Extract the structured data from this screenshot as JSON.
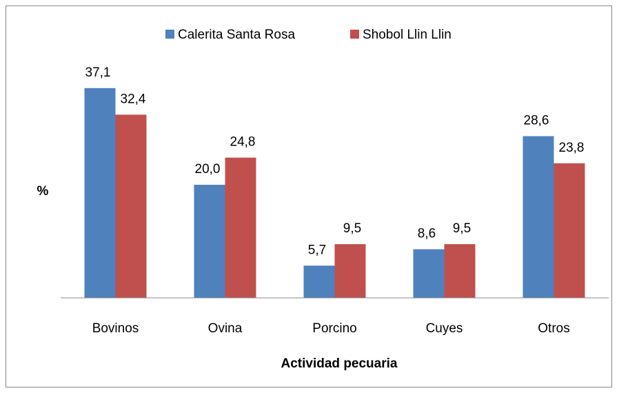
{
  "chart_data": {
    "type": "bar",
    "categories": [
      "Bovinos",
      "Ovina",
      "Porcino",
      "Cuyes",
      "Otros"
    ],
    "series": [
      {
        "name": "Calerita Santa Rosa",
        "color": "#4f81bd",
        "values": [
          37.1,
          20.0,
          5.7,
          8.6,
          28.6
        ],
        "value_labels": [
          "37,1",
          "20,0",
          "5,7",
          "8,6",
          "28,6"
        ]
      },
      {
        "name": "Shobol Llin Llin",
        "color": "#c0504d",
        "values": [
          32.4,
          24.8,
          9.5,
          9.5,
          23.8
        ],
        "value_labels": [
          "32,4",
          "24,8",
          "9,5",
          "9,5",
          "23,8"
        ]
      }
    ],
    "ylim": [
      0,
      40
    ],
    "y_label": "%",
    "x_label": "Actividad pecuaria",
    "legend": "top"
  }
}
